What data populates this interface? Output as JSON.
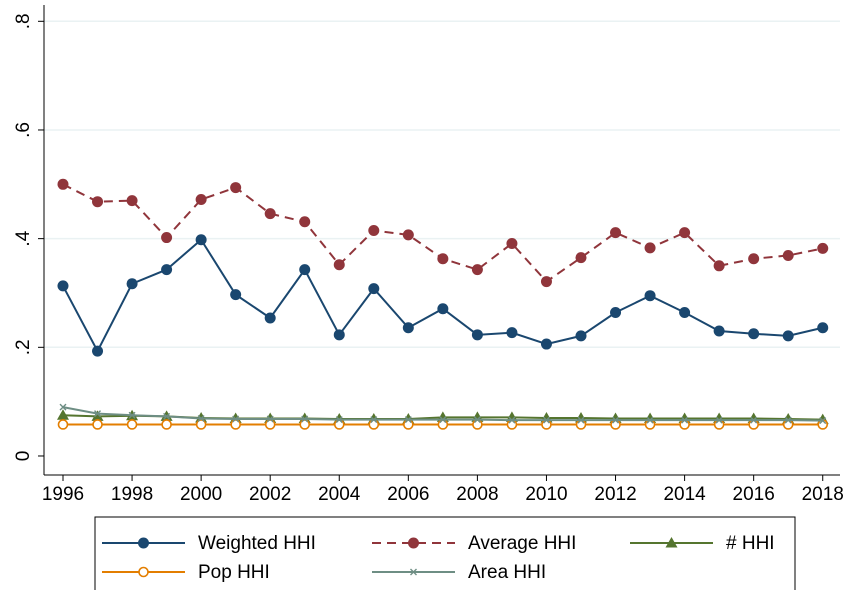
{
  "chart_data": {
    "type": "line",
    "x": [
      1996,
      1997,
      1998,
      1999,
      2000,
      2001,
      2002,
      2003,
      2004,
      2005,
      2006,
      2007,
      2008,
      2009,
      2010,
      2011,
      2012,
      2013,
      2014,
      2015,
      2016,
      2017,
      2018
    ],
    "xlim": [
      1995.45,
      2018.5
    ],
    "xticks": [
      1996,
      1998,
      2000,
      2002,
      2004,
      2006,
      2008,
      2010,
      2012,
      2014,
      2016,
      2018
    ],
    "ylim": [
      -0.035,
      0.83
    ],
    "yticks": [
      0,
      {
        "value": 0.2,
        "label": ".2"
      },
      {
        "value": 0.4,
        "label": ".4"
      },
      {
        "value": 0.6,
        "label": ".6"
      },
      {
        "value": 0.8,
        "label": ".8"
      }
    ],
    "grid": true,
    "legend": "bottom",
    "series": [
      {
        "name": "Weighted HHI",
        "color": "#1a476f",
        "marker": "circle",
        "dash": false,
        "values": [
          0.313,
          0.193,
          0.317,
          0.343,
          0.398,
          0.297,
          0.254,
          0.343,
          0.223,
          0.308,
          0.236,
          0.271,
          0.223,
          0.227,
          0.206,
          0.221,
          0.264,
          0.295,
          0.264,
          0.23,
          0.225,
          0.221,
          0.236
        ]
      },
      {
        "name": "Average HHI",
        "color": "#90353b",
        "marker": "circle",
        "dash": true,
        "values": [
          0.5,
          0.468,
          0.47,
          0.402,
          0.472,
          0.494,
          0.446,
          0.431,
          0.352,
          0.415,
          0.407,
          0.363,
          0.343,
          0.391,
          0.321,
          0.365,
          0.411,
          0.383,
          0.411,
          0.35,
          0.363,
          0.369,
          0.382
        ]
      },
      {
        "name": "# HHI",
        "color": "#55752f",
        "marker": "triangle",
        "dash": false,
        "values": [
          0.075,
          0.073,
          0.074,
          0.073,
          0.07,
          0.069,
          0.069,
          0.069,
          0.068,
          0.068,
          0.068,
          0.071,
          0.071,
          0.071,
          0.07,
          0.07,
          0.069,
          0.069,
          0.069,
          0.069,
          0.069,
          0.068,
          0.067
        ]
      },
      {
        "name": "Pop HHI",
        "color": "#e37e00",
        "marker": "hollow-circle",
        "dash": false,
        "values": [
          0.058,
          0.058,
          0.058,
          0.058,
          0.058,
          0.058,
          0.058,
          0.058,
          0.058,
          0.058,
          0.058,
          0.058,
          0.058,
          0.058,
          0.058,
          0.058,
          0.058,
          0.058,
          0.058,
          0.058,
          0.058,
          0.058,
          0.058
        ]
      },
      {
        "name": "Area HHI",
        "color": "#6e8e84",
        "marker": "x",
        "dash": false,
        "values": [
          0.09,
          0.078,
          0.075,
          0.073,
          0.069,
          0.068,
          0.068,
          0.068,
          0.067,
          0.067,
          0.067,
          0.067,
          0.067,
          0.066,
          0.066,
          0.066,
          0.066,
          0.066,
          0.066,
          0.066,
          0.066,
          0.066,
          0.065
        ]
      }
    ]
  }
}
